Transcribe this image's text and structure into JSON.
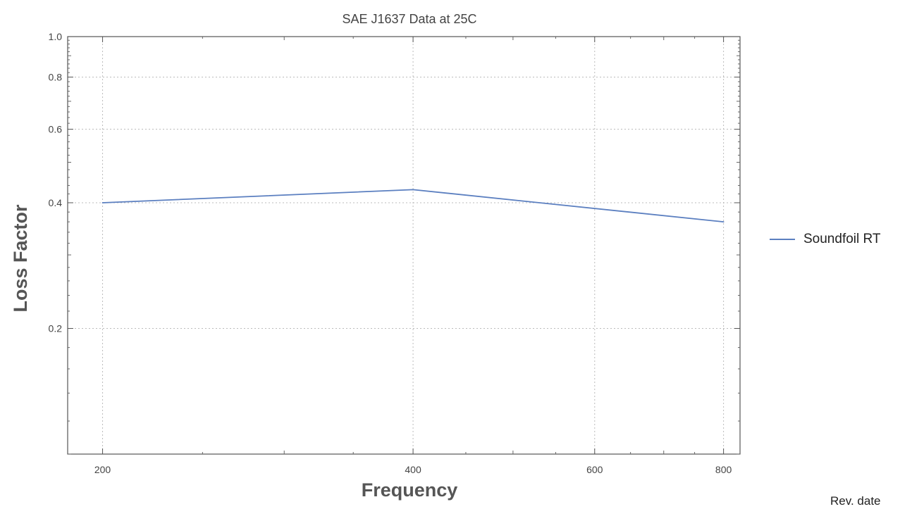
{
  "chart_data": {
    "type": "line",
    "title": "SAE J1637 Data at 25C",
    "xlabel": "Frequency",
    "ylabel": "Loss Factor",
    "x_scale": "log",
    "y_scale": "log",
    "xlim": [
      185,
      830
    ],
    "ylim": [
      0.1,
      1.0
    ],
    "x_ticks": [
      200,
      400,
      600,
      800
    ],
    "y_ticks": [
      0.2,
      0.4,
      0.6,
      0.8,
      1.0
    ],
    "y_tick_labels": [
      "0.2",
      "0.4",
      "0.6",
      "0.8",
      "1.0"
    ],
    "grid": true,
    "legend_position": "right",
    "series": [
      {
        "name": "Soundfoil RT",
        "color": "#5b7fc0",
        "x": [
          200,
          400,
          800
        ],
        "y": [
          0.4,
          0.43,
          0.36
        ]
      }
    ]
  },
  "footer": {
    "note": "Rev. date"
  }
}
